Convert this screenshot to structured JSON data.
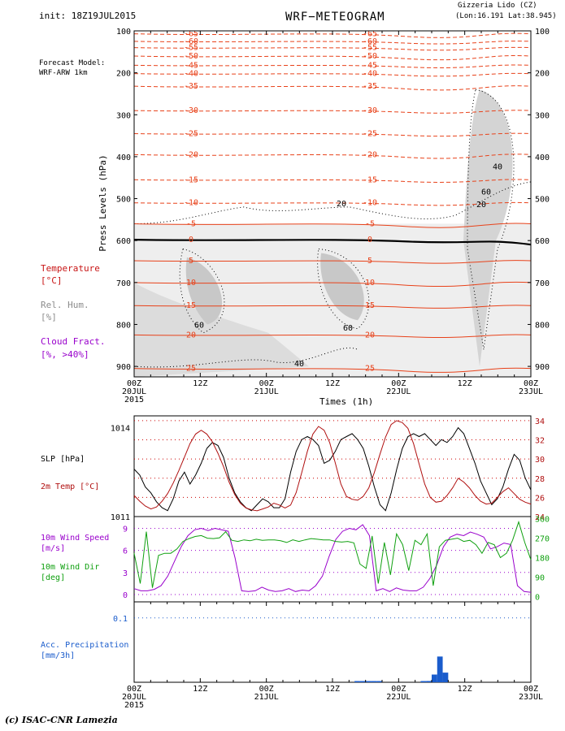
{
  "header": {
    "init": "init: 18Z19JUL2015",
    "title": "WRF−METEOGRAM",
    "station": "Gizzeria Lido (CZ)",
    "coords": "(Lon:16.191 Lat:38.945)",
    "model_line1": "Forecast Model:",
    "model_line2": "WRF-ARW 1km"
  },
  "colors": {
    "temperature": "#e8421a",
    "temp_label": "#c81414",
    "relhum_label": "#8c8c8c",
    "cloud_label": "#9900cc",
    "precip": "#1a5ccc",
    "wind_speed": "#9900cc",
    "wind_dir": "#10a010",
    "slp": "#000000",
    "temp2m": "#b01010"
  },
  "legend_upper": {
    "temperature": "Temperature",
    "temperature_unit": "[°C]",
    "relhum": "Rel. Hum.",
    "relhum_unit": "[%]",
    "cloud": "Cloud Fract.",
    "cloud_unit": "[%, >40%]"
  },
  "legend_middle": {
    "slp": "SLP [hPa]",
    "temp2m": "2m Temp [°C]",
    "ws1": "10m Wind Speed",
    "ws2": "[m/s]",
    "wd1": "10m Wind Dir",
    "wd2": "[deg]",
    "pr1": "Acc. Precipitation",
    "pr2": "[mm/3h]"
  },
  "time_axis": {
    "xlabel": "Times (1h)",
    "ticks": [
      "00Z",
      "12Z",
      "00Z",
      "12Z",
      "00Z",
      "12Z",
      "00Z"
    ],
    "dates": [
      "20JUL",
      "",
      "21JUL",
      "",
      "22JUL",
      "",
      "23JUL"
    ],
    "year": "2015"
  },
  "footer": "(c) ISAC-CNR Lamezia",
  "chart_data": [
    {
      "type": "line",
      "title": "WRF−METEOGRAM",
      "ylabel": "Press Levels (hPa)",
      "xlabel": "Times (1h)",
      "yticks": [
        "100",
        "200",
        "300",
        "400",
        "500",
        "600",
        "700",
        "800",
        "900"
      ],
      "ylim": [
        100,
        925
      ],
      "y_reversed": true,
      "xlim_hours": [
        0,
        72
      ],
      "temperature_levels": [
        {
          "label": "-65",
          "p": 107
        },
        {
          "label": "-60",
          "p": 125
        },
        {
          "label": "-55",
          "p": 140
        },
        {
          "label": "-50",
          "p": 160
        },
        {
          "label": "-45",
          "p": 182
        },
        {
          "label": "-40",
          "p": 202
        },
        {
          "label": "-35",
          "p": 232
        },
        {
          "label": "-30",
          "p": 290
        },
        {
          "label": "-25",
          "p": 345
        },
        {
          "label": "-20",
          "p": 395
        },
        {
          "label": "-15",
          "p": 455
        },
        {
          "label": "-10",
          "p": 510
        },
        {
          "label": "-5",
          "p": 560
        },
        {
          "label": "0",
          "p": 598
        },
        {
          "label": "5",
          "p": 648
        },
        {
          "label": "10",
          "p": 700
        },
        {
          "label": "15",
          "p": 755
        },
        {
          "label": "20",
          "p": 825
        },
        {
          "label": "25",
          "p": 905
        }
      ],
      "relhum_labels": [
        "20",
        "40",
        "60"
      ],
      "series_note": "temperature isolines, relative humidity shading, cloud fraction >40%"
    },
    {
      "type": "line",
      "series": [
        {
          "name": "SLP [hPa]",
          "axis": "left",
          "values": [
            1012.6,
            1012.4,
            1012.0,
            1011.8,
            1011.5,
            1011.3,
            1011.2,
            1011.6,
            1012.2,
            1012.5,
            1012.1,
            1012.4,
            1012.8,
            1013.3,
            1013.5,
            1013.4,
            1013.0,
            1012.3,
            1011.8,
            1011.5,
            1011.3,
            1011.2,
            1011.4,
            1011.6,
            1011.5,
            1011.3,
            1011.3,
            1011.6,
            1012.5,
            1013.2,
            1013.6,
            1013.7,
            1013.6,
            1013.4,
            1012.8,
            1012.9,
            1013.2,
            1013.6,
            1013.7,
            1013.8,
            1013.6,
            1013.3,
            1012.7,
            1012.0,
            1011.4,
            1011.2,
            1011.8,
            1012.6,
            1013.3,
            1013.7,
            1013.8,
            1013.7,
            1013.8,
            1013.6,
            1013.4,
            1013.6,
            1013.5,
            1013.7,
            1014.0,
            1013.8,
            1013.3,
            1012.8,
            1012.2,
            1011.8,
            1011.4,
            1011.6,
            1012.0,
            1012.6,
            1013.1,
            1012.9,
            1012.3,
            1011.9
          ]
        },
        {
          "name": "2m Temp [°C]",
          "axis": "right",
          "values": [
            26.2,
            25.6,
            25.1,
            24.8,
            25.0,
            25.6,
            26.4,
            27.5,
            28.8,
            30.2,
            31.6,
            32.6,
            33.0,
            32.6,
            31.8,
            30.6,
            29.2,
            27.6,
            26.3,
            25.4,
            24.9,
            24.7,
            24.6,
            24.8,
            25.0,
            25.4,
            25.2,
            24.9,
            25.2,
            26.5,
            28.6,
            30.8,
            32.6,
            33.4,
            33.0,
            31.7,
            29.6,
            27.4,
            26.1,
            25.8,
            25.7,
            26.1,
            27.0,
            28.6,
            30.5,
            32.3,
            33.6,
            34.0,
            33.8,
            33.2,
            31.6,
            29.5,
            27.4,
            26.0,
            25.5,
            25.6,
            26.2,
            27.0,
            28.0,
            27.6,
            27.0,
            26.2,
            25.6,
            25.3,
            25.4,
            26.0,
            26.6,
            27.0,
            26.4,
            25.8,
            25.5,
            25.3
          ]
        }
      ],
      "y_left_ticks": [
        "1011",
        "1014"
      ],
      "y_left_lim": [
        1011,
        1014.4
      ],
      "y_right_ticks": [
        "24",
        "26",
        "28",
        "30",
        "32",
        "34"
      ],
      "y_right_lim": [
        24,
        34.5
      ]
    },
    {
      "type": "line",
      "series": [
        {
          "name": "10m Wind Speed",
          "axis": "left",
          "values": [
            0.8,
            0.5,
            0.5,
            0.7,
            1.2,
            2.5,
            4.5,
            6.5,
            8.0,
            8.8,
            9.0,
            8.7,
            9.0,
            8.8,
            8.6,
            5.0,
            0.5,
            0.4,
            0.5,
            1.0,
            0.6,
            0.4,
            0.5,
            0.8,
            0.4,
            0.6,
            0.5,
            1.2,
            2.5,
            5.2,
            7.5,
            8.6,
            9.0,
            8.8,
            9.5,
            8.0,
            0.5,
            0.8,
            0.4,
            0.9,
            0.6,
            0.5,
            0.5,
            1.0,
            2.2,
            4.0,
            6.5,
            7.8,
            8.2,
            8.0,
            8.5,
            8.2,
            7.8,
            6.2,
            6.5,
            7.0,
            6.8,
            1.2,
            0.4,
            0.3
          ]
        },
        {
          "name": "10m Wind Dir",
          "axis": "right",
          "values": [
            200,
            60,
            300,
            40,
            190,
            200,
            200,
            220,
            255,
            268,
            278,
            282,
            270,
            268,
            272,
            300,
            260,
            255,
            262,
            258,
            265,
            260,
            262,
            262,
            258,
            250,
            262,
            255,
            262,
            268,
            265,
            262,
            262,
            255,
            252,
            255,
            248,
            150,
            130,
            280,
            60,
            250,
            100,
            290,
            240,
            120,
            260,
            240,
            290,
            50,
            230,
            260,
            265,
            270,
            255,
            260,
            240,
            200,
            250,
            240,
            180,
            200,
            260,
            345,
            250,
            170
          ]
        }
      ],
      "y_left_ticks": [
        "0",
        "3",
        "6",
        "9"
      ],
      "y_left_lim": [
        -1,
        10.6
      ],
      "y_right_ticks": [
        "0",
        "90",
        "180",
        "270",
        "360"
      ],
      "y_right_lim": [
        -25,
        370
      ]
    },
    {
      "type": "bar",
      "series": [
        {
          "name": "Acc. Precipitation",
          "values": [
            0,
            0,
            0,
            0,
            0,
            0,
            0,
            0,
            0,
            0,
            0,
            0,
            0,
            0,
            0,
            0,
            0,
            0,
            0,
            0,
            0,
            0,
            0,
            0,
            0,
            0,
            0,
            0,
            0,
            0,
            0,
            0,
            0,
            0,
            0,
            0,
            0,
            0,
            0,
            0,
            0.001,
            0.001,
            0.001,
            0.001,
            0.001,
            0,
            0,
            0,
            0,
            0,
            0,
            0,
            0.001,
            0.002,
            0.012,
            0.04,
            0.015,
            0,
            0,
            0,
            0,
            0,
            0,
            0,
            0,
            0,
            0,
            0,
            0,
            0,
            0,
            0
          ]
        }
      ],
      "y_ticks": [
        "0.1"
      ],
      "y_lim": [
        0,
        0.125
      ]
    }
  ]
}
